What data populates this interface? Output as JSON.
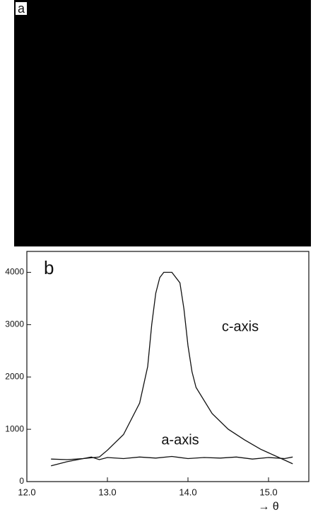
{
  "panel_a": {
    "label": "a"
  },
  "chart_data": {
    "type": "line",
    "panel_label": "b",
    "x_label": "→ θ",
    "xlim": [
      12.0,
      15.5
    ],
    "xticks": [
      {
        "value": 12.0,
        "label": "12.0"
      },
      {
        "value": 13.0,
        "label": "13.0"
      },
      {
        "value": 14.0,
        "label": "14.0"
      },
      {
        "value": 15.0,
        "label": "15.0"
      }
    ],
    "ylim": [
      0,
      4400
    ],
    "yticks": [
      0,
      1000,
      2000,
      3000,
      4000
    ],
    "series": [
      {
        "name": "c-axis",
        "color": "#111111",
        "x": [
          12.3,
          12.5,
          12.7,
          12.9,
          13.0,
          13.2,
          13.4,
          13.5,
          13.55,
          13.6,
          13.65,
          13.7,
          13.8,
          13.9,
          13.95,
          14.0,
          14.05,
          14.1,
          14.3,
          14.5,
          14.7,
          14.9,
          15.1,
          15.3
        ],
        "values": [
          300,
          380,
          440,
          470,
          600,
          900,
          1500,
          2200,
          3000,
          3600,
          3900,
          4000,
          4000,
          3800,
          3300,
          2600,
          2100,
          1800,
          1300,
          1000,
          800,
          620,
          480,
          340
        ]
      },
      {
        "name": "a-axis",
        "color": "#111111",
        "x": [
          12.3,
          12.5,
          12.7,
          12.8,
          12.9,
          13.0,
          13.2,
          13.4,
          13.6,
          13.8,
          14.0,
          14.2,
          14.4,
          14.6,
          14.8,
          15.0,
          15.2,
          15.3
        ],
        "values": [
          430,
          420,
          440,
          470,
          420,
          460,
          440,
          470,
          450,
          480,
          440,
          460,
          450,
          470,
          430,
          460,
          440,
          470
        ]
      }
    ]
  }
}
